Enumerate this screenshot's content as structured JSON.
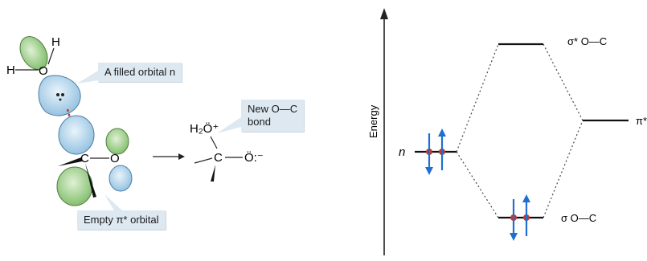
{
  "left_diagram": {
    "labels": {
      "filled_orbital": "A filled orbital n",
      "empty_orbital": "Empty π* orbital",
      "new_bond": "New O—C\nbond"
    },
    "water": {
      "h_top": "H",
      "h_left": "H",
      "o": "O"
    },
    "carbonyl": {
      "c": "C",
      "o": "O"
    },
    "product": {
      "h2o": "H₂Ö⁺",
      "c": "C",
      "o": "Ö:⁻"
    },
    "arrow": "reaction-arrow"
  },
  "energy_diagram": {
    "axis_label": "Energy",
    "levels": {
      "sigma_star": "σ* O—C",
      "pi_star": "π*",
      "n": "n",
      "sigma": "σ O—C"
    }
  },
  "colors": {
    "blue_lobe": "#a9cde6",
    "green_lobe": "#9fcf8c",
    "callout_bg": "#dde8f1",
    "electron": "#c0392b",
    "spin_arrow": "#1f6fd1"
  }
}
